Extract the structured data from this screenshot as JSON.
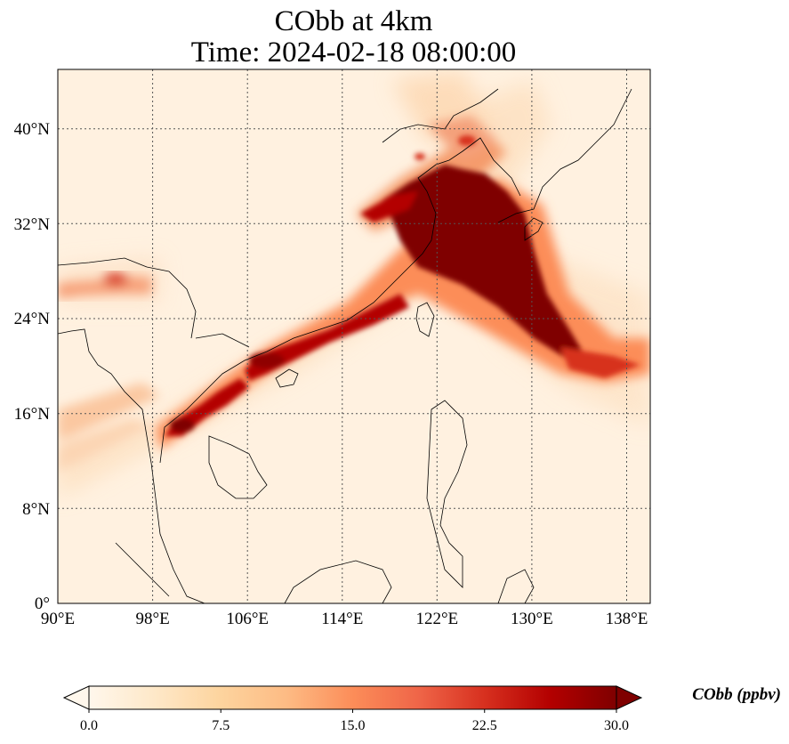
{
  "title": {
    "line1": "CObb at 4km",
    "line2": "Time: 2024-02-18 08:00:00"
  },
  "map": {
    "projection": "PlateCarree",
    "lon_range": [
      90,
      140
    ],
    "lat_range": [
      0,
      45
    ],
    "lon_ticks": [
      "90°E",
      "98°E",
      "106°E",
      "114°E",
      "122°E",
      "130°E",
      "138°E"
    ],
    "lat_ticks": [
      "0°",
      "8°N",
      "16°N",
      "24°N",
      "32°N",
      "40°N"
    ],
    "gridlines": "dotted",
    "coastlines": true,
    "borders": true
  },
  "colorbar": {
    "label": "CObb (ppbv)",
    "colormap": "OrRd",
    "extend": "both",
    "range": [
      0.0,
      30.0
    ],
    "ticks": [
      "0.0",
      "7.5",
      "15.0",
      "22.5",
      "30.0"
    ],
    "colors": [
      "#fff7ec",
      "#fee8c8",
      "#fdd49e",
      "#fdbb84",
      "#fc8d59",
      "#ef6548",
      "#d7301f",
      "#b30000",
      "#7f0000"
    ]
  }
}
